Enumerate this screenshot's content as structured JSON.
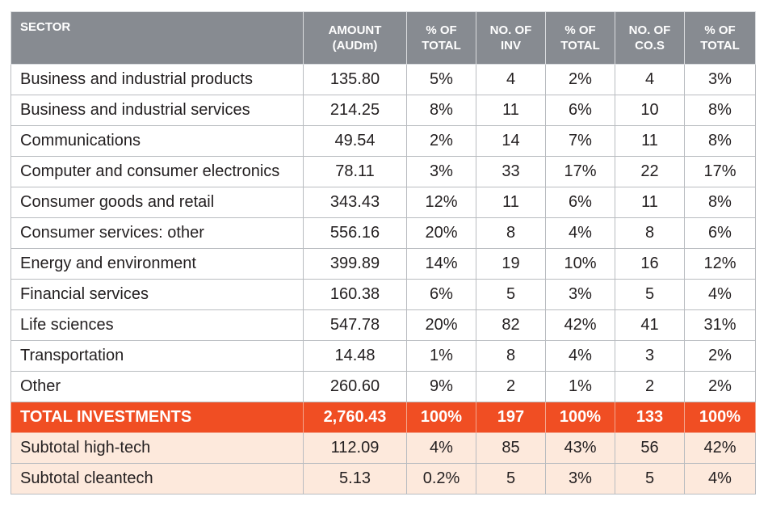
{
  "table": {
    "headers": [
      [
        "SECTOR"
      ],
      [
        "AMOUNT",
        "(AUDm)"
      ],
      [
        "% OF",
        "TOTAL"
      ],
      [
        "NO. OF",
        "INV"
      ],
      [
        "% OF",
        "TOTAL"
      ],
      [
        "NO. OF",
        "CO.S"
      ],
      [
        "% OF",
        "TOTAL"
      ]
    ],
    "rows": [
      [
        "Business and industrial products",
        "135.80",
        "5%",
        "4",
        "2%",
        "4",
        "3%"
      ],
      [
        "Business and industrial services",
        "214.25",
        "8%",
        "11",
        "6%",
        "10",
        "8%"
      ],
      [
        "Communications",
        "49.54",
        "2%",
        "14",
        "7%",
        "11",
        "8%"
      ],
      [
        "Computer and consumer electronics",
        "78.11",
        "3%",
        "33",
        "17%",
        "22",
        "17%"
      ],
      [
        "Consumer goods and retail",
        "343.43",
        "12%",
        "11",
        "6%",
        "11",
        "8%"
      ],
      [
        "Consumer services: other",
        "556.16",
        "20%",
        "8",
        "4%",
        "8",
        "6%"
      ],
      [
        "Energy and environment",
        "399.89",
        "14%",
        "19",
        "10%",
        "16",
        "12%"
      ],
      [
        "Financial services",
        "160.38",
        "6%",
        "5",
        "3%",
        "5",
        "4%"
      ],
      [
        "Life sciences",
        "547.78",
        "20%",
        "82",
        "42%",
        "41",
        "31%"
      ],
      [
        "Transportation",
        "14.48",
        "1%",
        "8",
        "4%",
        "3",
        "2%"
      ],
      [
        "Other",
        "260.60",
        "9%",
        "2",
        "1%",
        "2",
        "2%"
      ]
    ],
    "total": [
      "TOTAL INVESTMENTS",
      "2,760.43",
      "100%",
      "197",
      "100%",
      "133",
      "100%"
    ],
    "subtotals": [
      [
        "Subtotal high-tech",
        "112.09",
        "4%",
        "85",
        "43%",
        "56",
        "42%"
      ],
      [
        "Subtotal cleantech",
        "5.13",
        "0.2%",
        "5",
        "3%",
        "5",
        "4%"
      ]
    ]
  },
  "colors": {
    "header_bg": "#878b91",
    "total_bg": "#f04e23",
    "subtotal_bg": "#fde9dc"
  }
}
